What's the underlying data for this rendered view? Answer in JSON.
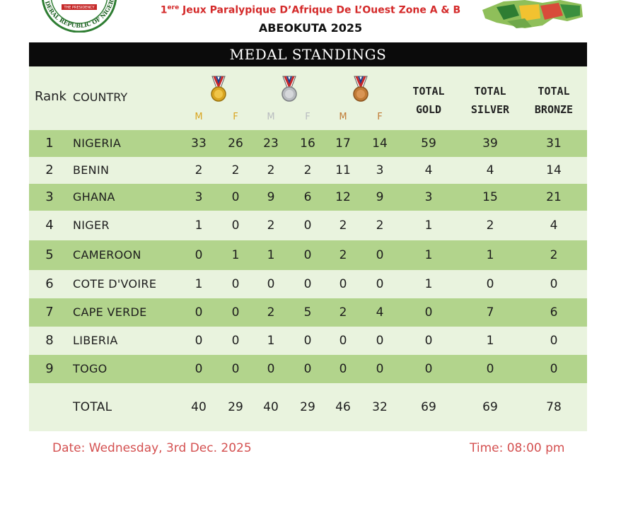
{
  "header": {
    "line1_pre": "1",
    "line1_sup": "ere",
    "line1_rest": " Jeux Paralypique D’Afrique De L’Ouest Zone A & B",
    "line2": "ABEOKUTA 2025",
    "seal_text_top": "THE PRESIDENCY",
    "seal_text_bottom": "FEDERAL REPUBLIC OF NIGERIA"
  },
  "table": {
    "title": "MEDAL STANDINGS",
    "col_rank": "Rank",
    "col_country": "COUNTRY",
    "mf_labels": [
      "M",
      "F",
      "M",
      "F",
      "M",
      "F"
    ],
    "total_gold": [
      "TOTAL",
      "GOLD"
    ],
    "total_silver": [
      "TOTAL",
      "SILVER"
    ],
    "total_bronze": [
      "TOTAL",
      "BRONZE"
    ],
    "rows": [
      {
        "rank": "1",
        "country": "NIGERIA",
        "vals": [
          "33",
          "26",
          "23",
          "16",
          "17",
          "14",
          "59",
          "39",
          "31"
        ]
      },
      {
        "rank": "2",
        "country": "BENIN",
        "vals": [
          "2",
          "2",
          "2",
          "2",
          "11",
          "3",
          "4",
          "4",
          "14"
        ]
      },
      {
        "rank": "3",
        "country": "GHANA",
        "vals": [
          "3",
          "0",
          "9",
          "6",
          "12",
          "9",
          "3",
          "15",
          "21"
        ]
      },
      {
        "rank": "4",
        "country": "NIGER",
        "vals": [
          "1",
          "0",
          "2",
          "0",
          "2",
          "2",
          "1",
          "2",
          "4"
        ]
      },
      {
        "rank": "5",
        "country": "CAMEROON",
        "vals": [
          "0",
          "1",
          "1",
          "0",
          "2",
          "0",
          "1",
          "1",
          "2"
        ]
      },
      {
        "rank": "6",
        "country": "COTE D'VOIRE",
        "vals": [
          "1",
          "0",
          "0",
          "0",
          "0",
          "0",
          "1",
          "0",
          "0"
        ]
      },
      {
        "rank": "7",
        "country": "CAPE VERDE",
        "vals": [
          "0",
          "0",
          "2",
          "5",
          "2",
          "4",
          "0",
          "7",
          "6"
        ]
      },
      {
        "rank": "8",
        "country": "LIBERIA",
        "vals": [
          "0",
          "0",
          "1",
          "0",
          "0",
          "0",
          "0",
          "1",
          "0"
        ]
      },
      {
        "rank": "9",
        "country": "TOGO",
        "vals": [
          "0",
          "0",
          "0",
          "0",
          "0",
          "0",
          "0",
          "0",
          "0"
        ]
      }
    ],
    "total": {
      "label": "TOTAL",
      "vals": [
        "40",
        "29",
        "40",
        "29",
        "46",
        "32",
        "69",
        "69",
        "78"
      ]
    }
  },
  "footer": {
    "date": "Date: Wednesday, 3rd Dec. 2025",
    "time": "Time: 08:00 pm"
  },
  "colors": {
    "gold": "#d9a520",
    "silver": "#b9bcc0",
    "bronze": "#c07a35",
    "row_dark": "#b2d48c",
    "row_light": "#e9f3de",
    "accent_red": "#d42a2a"
  },
  "icons": [
    "nigeria-coat-of-arms-seal",
    "west-africa-map-logo",
    "gold-medal-icon",
    "silver-medal-icon",
    "bronze-medal-icon"
  ]
}
